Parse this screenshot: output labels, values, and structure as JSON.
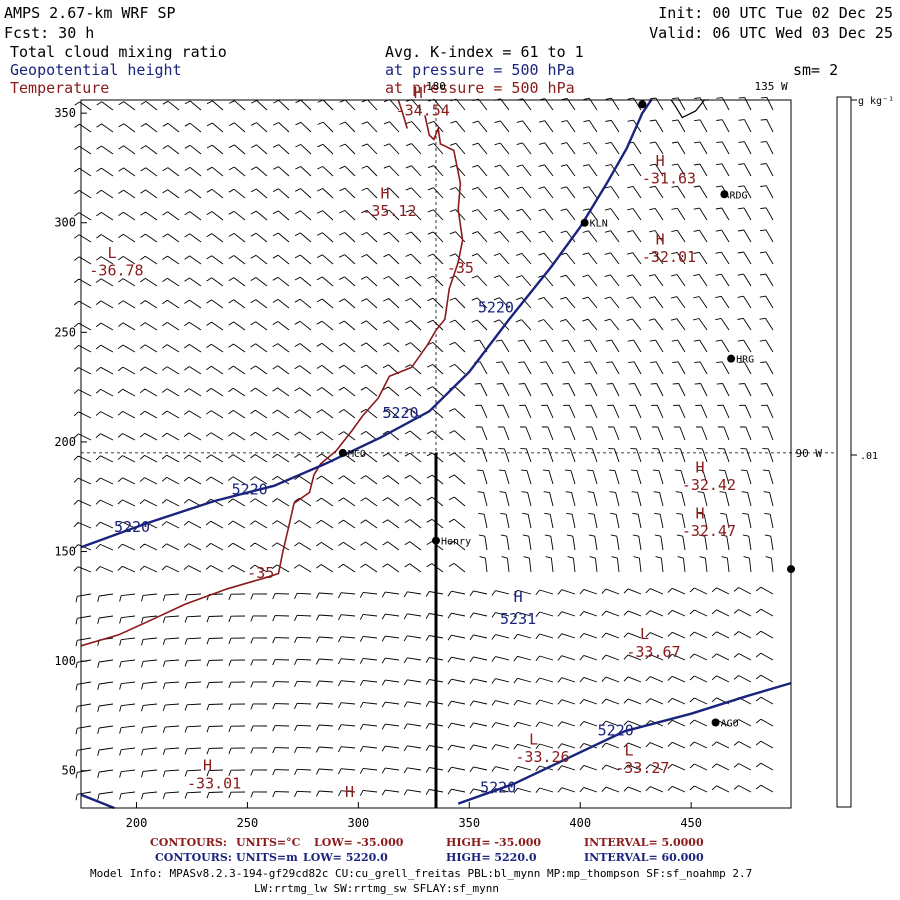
{
  "header": {
    "model_title": "AMPS 2.67-km WRF SP",
    "forecast": "Fcst:   30 h",
    "init": "Init: 00 UTC Tue 02 Dec 25",
    "valid": "Valid: 06 UTC Wed 03 Dec 25",
    "fields": [
      {
        "label": "Total cloud mixing ratio",
        "color": "#000000"
      },
      {
        "label": "Geopotential height",
        "color": "#1a237e"
      },
      {
        "label": "Temperature",
        "color": "#8b1a1a"
      }
    ],
    "field_params": [
      "Avg. K-index =  61 to   1",
      "at pressure =  500 hPa",
      "at pressure =  500 hPa"
    ],
    "smoothing": "sm= 2"
  },
  "map": {
    "x_ticks": [
      "200",
      "250",
      "300",
      "350",
      "400",
      "450"
    ],
    "y_ticks": [
      "50",
      "100",
      "150",
      "200",
      "250",
      "300",
      "350"
    ],
    "x_range": [
      175,
      495
    ],
    "y_range": [
      33,
      356
    ],
    "meridian_labels": [
      {
        "text": "180",
        "x": 335,
        "y": 356
      },
      {
        "text": "135 W",
        "x": 486,
        "y": 356
      },
      {
        "text": "90 W",
        "x": 503,
        "y": 195
      }
    ],
    "stations": [
      {
        "name": "KLN",
        "x": 402,
        "y": 300
      },
      {
        "name": "RDG",
        "x": 465,
        "y": 313
      },
      {
        "name": "HRG",
        "x": 468,
        "y": 238
      },
      {
        "name": "MCO",
        "x": 293,
        "y": 195
      },
      {
        "name": "Henry",
        "x": 335,
        "y": 155
      },
      {
        "name": "AGO",
        "x": 461,
        "y": 72
      },
      {
        "name": "",
        "x": 495,
        "y": 142
      },
      {
        "name": "",
        "x": 428,
        "y": 354
      }
    ],
    "temperature_labels": [
      {
        "text": "H",
        "x": 327,
        "y": 357
      },
      {
        "text": "-34.54",
        "x": 329,
        "y": 349
      },
      {
        "text": "H",
        "x": 312,
        "y": 311
      },
      {
        "text": "-35.12",
        "x": 314,
        "y": 303
      },
      {
        "text": "L",
        "x": 189,
        "y": 284
      },
      {
        "text": "-36.78",
        "x": 191,
        "y": 276
      },
      {
        "text": "-35",
        "x": 346,
        "y": 277
      },
      {
        "text": "H",
        "x": 436,
        "y": 326
      },
      {
        "text": "-31.63",
        "x": 440,
        "y": 318
      },
      {
        "text": "H",
        "x": 436,
        "y": 290
      },
      {
        "text": "-32.01",
        "x": 440,
        "y": 282
      },
      {
        "text": "H",
        "x": 454,
        "y": 186
      },
      {
        "text": "-32.42",
        "x": 458,
        "y": 178
      },
      {
        "text": "H",
        "x": 454,
        "y": 165
      },
      {
        "text": "-32.47",
        "x": 458,
        "y": 157
      },
      {
        "text": "-35",
        "x": 256,
        "y": 138
      },
      {
        "text": "L",
        "x": 429,
        "y": 110
      },
      {
        "text": "-33.67",
        "x": 433,
        "y": 102
      },
      {
        "text": "L",
        "x": 422,
        "y": 57
      },
      {
        "text": "-33.27",
        "x": 428,
        "y": 49
      },
      {
        "text": "L",
        "x": 379,
        "y": 62
      },
      {
        "text": "-33.26",
        "x": 383,
        "y": 54
      },
      {
        "text": "H",
        "x": 232,
        "y": 50
      },
      {
        "text": "-33.01",
        "x": 235,
        "y": 42
      },
      {
        "text": "H",
        "x": 296,
        "y": 38
      }
    ],
    "height_labels": [
      {
        "text": "5220",
        "x": 362,
        "y": 259
      },
      {
        "text": "5220",
        "x": 319,
        "y": 211
      },
      {
        "text": "5220",
        "x": 251,
        "y": 176
      },
      {
        "text": "5220",
        "x": 198,
        "y": 159
      },
      {
        "text": "H",
        "x": 372,
        "y": 127
      },
      {
        "text": "5231",
        "x": 372,
        "y": 117
      },
      {
        "text": "5220",
        "x": 416,
        "y": 66
      },
      {
        "text": "5220",
        "x": 363,
        "y": 40
      }
    ]
  },
  "colorbar": {
    "units": "g kg⁻¹",
    "value_label": ".01"
  },
  "footer": {
    "temp_contours": {
      "label": "CONTOURS:",
      "units": "UNITS=°C",
      "low": "LOW= -35.000",
      "high": "HIGH= -35.000",
      "interval": "INTERVAL=   5.0000"
    },
    "height_contours": {
      "label": "CONTOURS:",
      "units": "UNITS=m",
      "low": "LOW=  5220.0",
      "high": "HIGH=  5220.0",
      "interval": "INTERVAL=   60.000"
    },
    "model_info_1": "Model Info: MPASv8.2.3-194-gf29cd82c CU:cu_grell_freitas PBL:bl_mynn MP:mp_thompson SF:sf_noahmp 2.7",
    "model_info_2": "LW:rrtmg_lw SW:rrtmg_sw SFLAY:sf_mynn"
  }
}
